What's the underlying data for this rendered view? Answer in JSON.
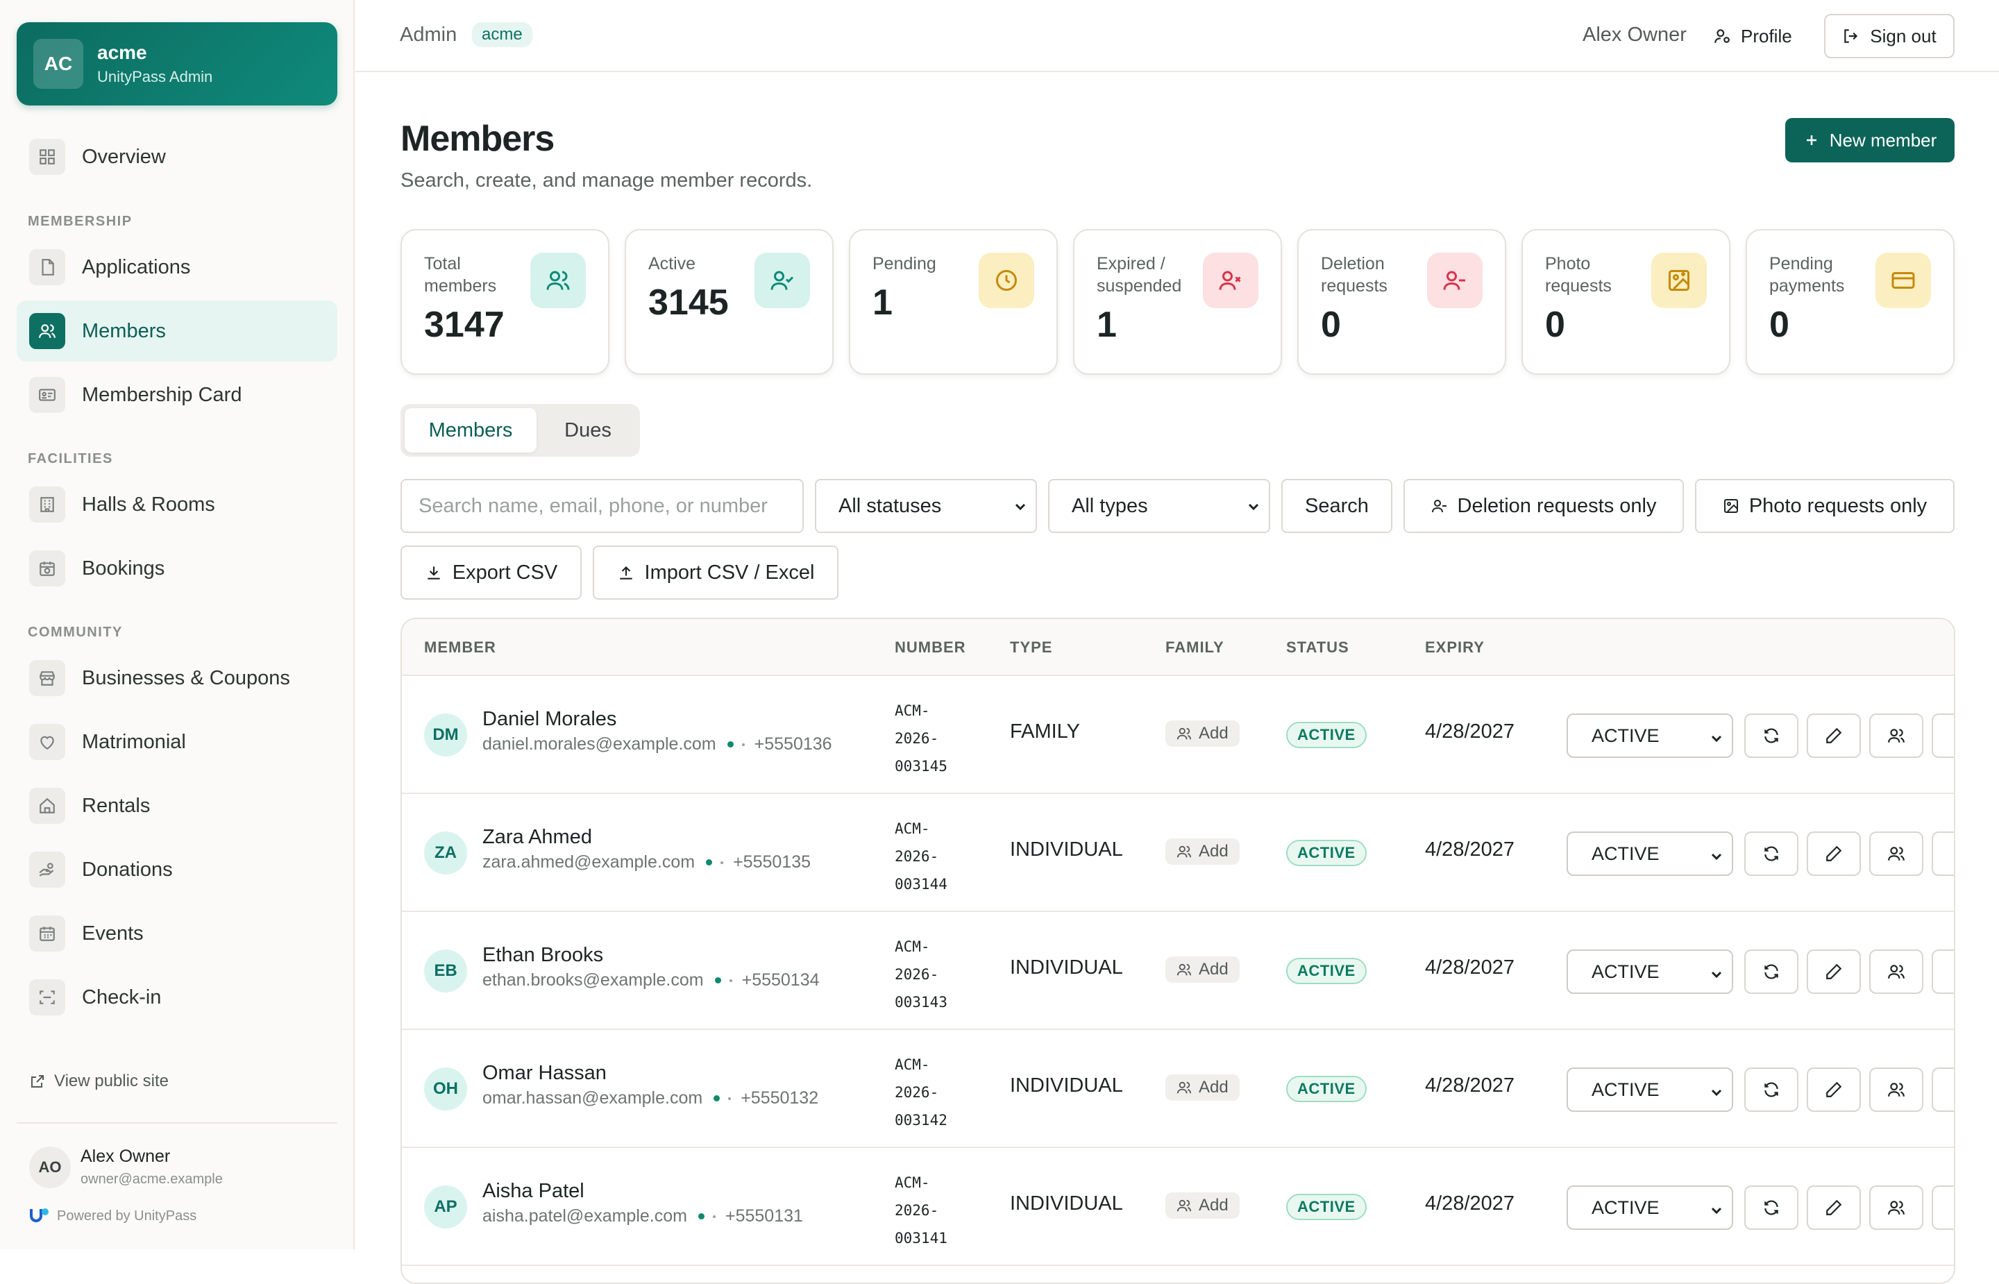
{
  "brand": {
    "badge": "AC",
    "name": "acme",
    "subtitle": "UnityPass Admin"
  },
  "sidebar": {
    "overview": "Overview",
    "sections": {
      "membership": "MEMBERSHIP",
      "facilities": "FACILITIES",
      "community": "COMMUNITY"
    },
    "items": [
      {
        "label": "Applications",
        "icon": "file-icon"
      },
      {
        "label": "Members",
        "icon": "users-icon",
        "active": true
      },
      {
        "label": "Membership Card",
        "icon": "id-card-icon"
      },
      {
        "label": "Halls & Rooms",
        "icon": "building-icon"
      },
      {
        "label": "Bookings",
        "icon": "calendar-clock-icon"
      },
      {
        "label": "Businesses & Coupons",
        "icon": "store-icon"
      },
      {
        "label": "Matrimonial",
        "icon": "heart-icon"
      },
      {
        "label": "Rentals",
        "icon": "home-icon"
      },
      {
        "label": "Donations",
        "icon": "hand-coins-icon"
      },
      {
        "label": "Events",
        "icon": "calendar-icon"
      },
      {
        "label": "Check-in",
        "icon": "scan-icon"
      }
    ],
    "view_public": "View public site",
    "user": {
      "initials": "AO",
      "name": "Alex Owner",
      "email": "owner@acme.example"
    },
    "powered_by": "Powered by UnityPass"
  },
  "header": {
    "admin": "Admin",
    "tenant": "acme",
    "user_name": "Alex Owner",
    "profile": "Profile",
    "sign_out": "Sign out"
  },
  "page": {
    "title": "Members",
    "subtitle": "Search, create, and manage member records.",
    "new_button": "New member"
  },
  "stats": [
    {
      "label": "Total members",
      "value": "3147",
      "icon": "users-icon"
    },
    {
      "label": "Active",
      "value": "3145",
      "icon": "user-check-icon"
    },
    {
      "label": "Pending",
      "value": "1",
      "icon": "clock-icon"
    },
    {
      "label": "Expired / suspended",
      "value": "1",
      "icon": "user-x-icon"
    },
    {
      "label": "Deletion requests",
      "value": "0",
      "icon": "user-minus-icon"
    },
    {
      "label": "Photo requests",
      "value": "0",
      "icon": "image-upload-icon"
    },
    {
      "label": "Pending payments",
      "value": "0",
      "icon": "credit-card-icon"
    }
  ],
  "tabs": [
    "Members",
    "Dues"
  ],
  "filters": {
    "search_placeholder": "Search name, email, phone, or number",
    "status_value": "All statuses",
    "type_value": "All types",
    "search_button": "Search",
    "deletion_only": "Deletion requests only",
    "photo_only": "Photo requests only",
    "export": "Export CSV",
    "import": "Import CSV / Excel"
  },
  "table": {
    "headers": [
      "MEMBER",
      "NUMBER",
      "TYPE",
      "FAMILY",
      "STATUS",
      "EXPIRY"
    ],
    "rows": [
      {
        "initials": "DM",
        "name": "Daniel Morales",
        "email": "daniel.morales@example.com",
        "phone": "+5550136",
        "number": "ACM-2026-003145",
        "type": "FAMILY",
        "family": "Add",
        "status": "ACTIVE",
        "expiry": "4/28/2027",
        "status_select": "ACTIVE"
      },
      {
        "initials": "ZA",
        "name": "Zara Ahmed",
        "email": "zara.ahmed@example.com",
        "phone": "+5550135",
        "number": "ACM-2026-003144",
        "type": "INDIVIDUAL",
        "family": "Add",
        "status": "ACTIVE",
        "expiry": "4/28/2027",
        "status_select": "ACTIVE"
      },
      {
        "initials": "EB",
        "name": "Ethan Brooks",
        "email": "ethan.brooks@example.com",
        "phone": "+5550134",
        "number": "ACM-2026-003143",
        "type": "INDIVIDUAL",
        "family": "Add",
        "status": "ACTIVE",
        "expiry": "4/28/2027",
        "status_select": "ACTIVE"
      },
      {
        "initials": "OH",
        "name": "Omar Hassan",
        "email": "omar.hassan@example.com",
        "phone": "+5550132",
        "number": "ACM-2026-003142",
        "type": "INDIVIDUAL",
        "family": "Add",
        "status": "ACTIVE",
        "expiry": "4/28/2027",
        "status_select": "ACTIVE"
      },
      {
        "initials": "AP",
        "name": "Aisha Patel",
        "email": "aisha.patel@example.com",
        "phone": "+5550131",
        "number": "ACM-2026-003141",
        "type": "INDIVIDUAL",
        "family": "Add",
        "status": "ACTIVE",
        "expiry": "4/28/2027",
        "status_select": "ACTIVE"
      }
    ]
  },
  "colors": {
    "accent": "#0c6459",
    "active_nav_bg": "#e6f5f1",
    "status_green": "#0c7a5f"
  }
}
